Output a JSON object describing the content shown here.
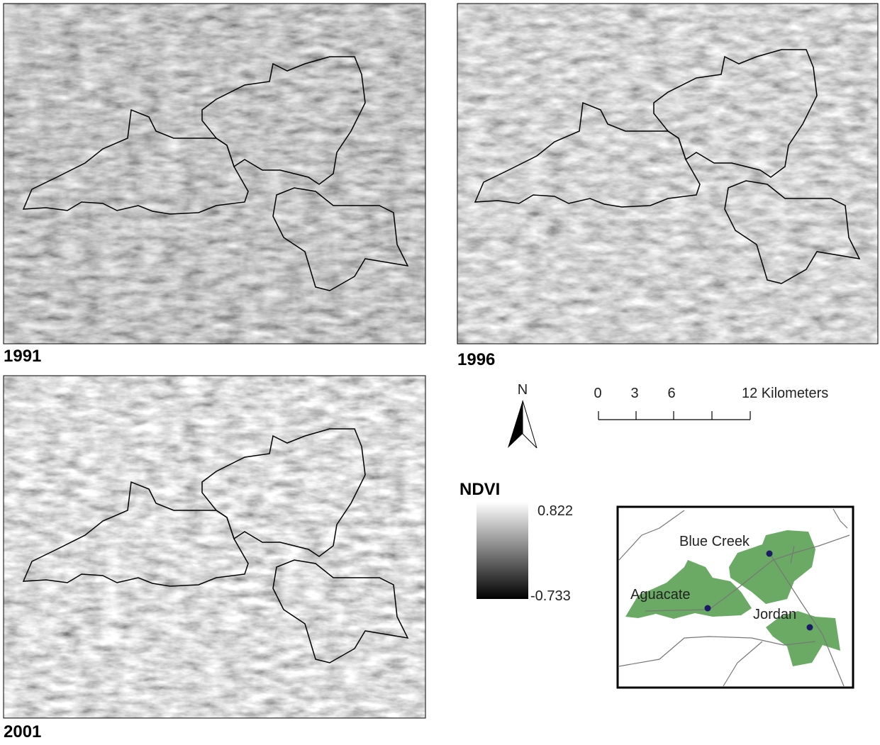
{
  "panels": [
    {
      "year": "1991"
    },
    {
      "year": "1996"
    },
    {
      "year": "2001"
    }
  ],
  "north_arrow": {
    "label": "N"
  },
  "scale_bar": {
    "labels": [
      "0",
      "3",
      "6",
      "12 Kilometers"
    ]
  },
  "legend": {
    "title": "NDVI",
    "max": 0.822,
    "min": -0.733
  },
  "inset": {
    "places": [
      "Blue Creek",
      "Aguacate",
      "Jordan"
    ]
  }
}
